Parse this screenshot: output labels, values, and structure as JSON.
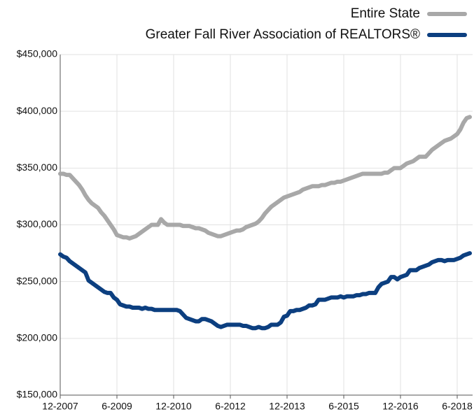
{
  "chart_data": {
    "type": "line",
    "categories": [
      "12-2007",
      null,
      null,
      null,
      null,
      null,
      null,
      null,
      null,
      null,
      null,
      null,
      null,
      null,
      null,
      null,
      null,
      null,
      "6-2009",
      null,
      null,
      null,
      null,
      null,
      null,
      null,
      null,
      null,
      null,
      null,
      null,
      null,
      null,
      null,
      null,
      null,
      "12-2010",
      null,
      null,
      null,
      null,
      null,
      null,
      null,
      null,
      null,
      null,
      null,
      null,
      null,
      null,
      null,
      null,
      null,
      "6-2012",
      null,
      null,
      null,
      null,
      null,
      null,
      null,
      null,
      null,
      null,
      null,
      null,
      null,
      null,
      null,
      null,
      null,
      "12-2013",
      null,
      null,
      null,
      null,
      null,
      null,
      null,
      null,
      null,
      null,
      null,
      null,
      null,
      null,
      null,
      null,
      null,
      "6-2015",
      null,
      null,
      null,
      null,
      null,
      null,
      null,
      null,
      null,
      null,
      null,
      null,
      null,
      null,
      null,
      null,
      null,
      "12-2016",
      null,
      null,
      null,
      null,
      null,
      null,
      null,
      null,
      null,
      null,
      null,
      null,
      null,
      null,
      null,
      null,
      null,
      "6-2018",
      null,
      null,
      null,
      null
    ],
    "series": [
      {
        "name": "Entire State",
        "color": "#a8a8a8",
        "values": [
          345000,
          345000,
          344000,
          344000,
          341000,
          338000,
          335000,
          331000,
          326000,
          322000,
          319000,
          317000,
          315000,
          311000,
          308000,
          304000,
          300000,
          296000,
          291000,
          290000,
          289000,
          289000,
          288000,
          289000,
          290000,
          292000,
          294000,
          296000,
          298000,
          300000,
          300000,
          300000,
          305000,
          302000,
          300000,
          300000,
          300000,
          300000,
          300000,
          299000,
          299000,
          299000,
          298000,
          297000,
          297000,
          296000,
          295000,
          293000,
          292000,
          291000,
          290000,
          290000,
          291000,
          292000,
          293000,
          294000,
          295000,
          295000,
          296000,
          298000,
          299000,
          300000,
          301000,
          303000,
          306000,
          310000,
          313000,
          316000,
          318000,
          320000,
          322000,
          324000,
          325000,
          326000,
          327000,
          328000,
          329000,
          331000,
          332000,
          333000,
          334000,
          334000,
          334000,
          335000,
          335000,
          336000,
          337000,
          337000,
          338000,
          338000,
          339000,
          340000,
          341000,
          342000,
          343000,
          344000,
          345000,
          345000,
          345000,
          345000,
          345000,
          345000,
          345000,
          346000,
          346000,
          348000,
          350000,
          350000,
          350000,
          352000,
          354000,
          355000,
          356000,
          358000,
          360000,
          360000,
          360000,
          363000,
          366000,
          368000,
          370000,
          372000,
          374000,
          375000,
          376000,
          378000,
          380000,
          384000,
          390000,
          394000,
          395000
        ]
      },
      {
        "name": "Greater Fall River Association of REALTORS®",
        "color": "#0c3f80",
        "values": [
          274000,
          272000,
          271000,
          268000,
          266000,
          264000,
          262000,
          260000,
          258000,
          251000,
          249000,
          247000,
          245000,
          243000,
          241000,
          240000,
          240000,
          236000,
          234000,
          230000,
          229000,
          228000,
          228000,
          227000,
          227000,
          227000,
          226000,
          227000,
          226000,
          226000,
          225000,
          225000,
          225000,
          225000,
          225000,
          225000,
          225000,
          225000,
          224000,
          221000,
          218000,
          217000,
          216000,
          215000,
          215000,
          217000,
          217000,
          216000,
          215000,
          213000,
          211000,
          210000,
          211000,
          212000,
          212000,
          212000,
          212000,
          212000,
          211000,
          211000,
          210000,
          209000,
          209000,
          210000,
          209000,
          209000,
          210000,
          212000,
          212000,
          212000,
          214000,
          219000,
          220000,
          224000,
          224000,
          225000,
          225000,
          226000,
          227000,
          229000,
          229000,
          230000,
          234000,
          234000,
          234000,
          235000,
          236000,
          236000,
          236000,
          237000,
          236000,
          237000,
          237000,
          237000,
          238000,
          238000,
          239000,
          239000,
          240000,
          240000,
          240000,
          245000,
          248000,
          249000,
          250000,
          254000,
          254000,
          252000,
          254000,
          255000,
          256000,
          260000,
          260000,
          260000,
          262000,
          263000,
          264000,
          265000,
          267000,
          268000,
          269000,
          269000,
          268000,
          269000,
          269000,
          269000,
          270000,
          271000,
          273000,
          274000,
          275000
        ]
      }
    ],
    "ylim": [
      150000,
      450000
    ],
    "yticks": [
      {
        "value": 150000,
        "label": "$150,000"
      },
      {
        "value": 200000,
        "label": "$200,000"
      },
      {
        "value": 250000,
        "label": "$250,000"
      },
      {
        "value": 300000,
        "label": "$300,000"
      },
      {
        "value": 350000,
        "label": "$350,000"
      },
      {
        "value": 400000,
        "label": "$400,000"
      },
      {
        "value": 450000,
        "label": "$450,000"
      }
    ],
    "grid": true,
    "legend": "top-right"
  }
}
